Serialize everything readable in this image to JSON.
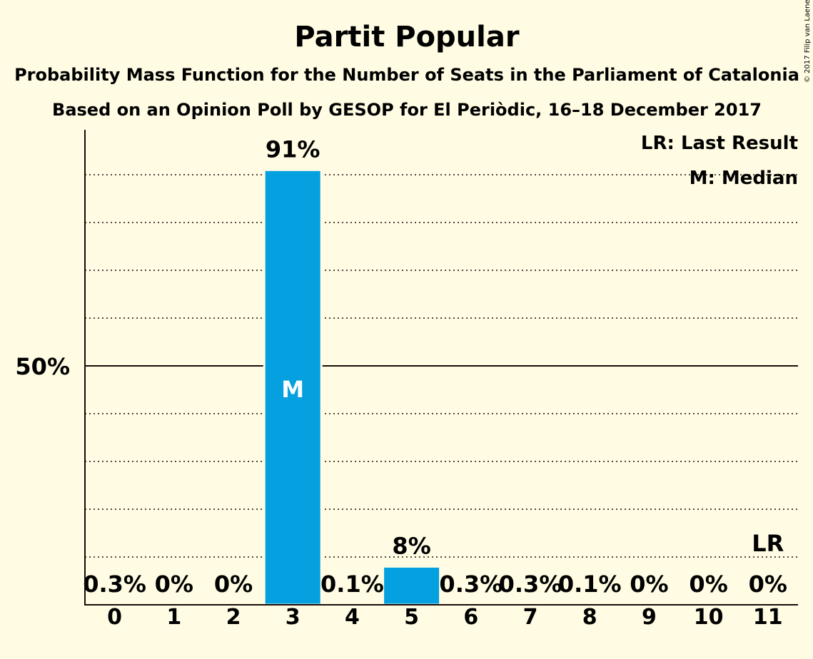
{
  "chart_data": {
    "type": "bar",
    "title": "Partit Popular",
    "subtitle_lines": [
      "Probability Mass Function for the Number of Seats in the Parliament of Catalonia",
      "Based on an Opinion Poll by GESOP for El Periòdic, 16–18 December 2017"
    ],
    "copyright": "© 2017 Filip van Laenen",
    "categories": [
      "0",
      "1",
      "2",
      "3",
      "4",
      "5",
      "6",
      "7",
      "8",
      "9",
      "10",
      "11"
    ],
    "values": [
      0.3,
      0,
      0,
      91,
      0.1,
      8,
      0.3,
      0.3,
      0.1,
      0,
      0,
      0
    ],
    "value_labels": [
      "0.3%",
      "0%",
      "0%",
      "91%",
      "0.1%",
      "8%",
      "0.3%",
      "0.3%",
      "0.1%",
      "0%",
      "0%",
      "0%"
    ],
    "ylim": [
      0,
      100
    ],
    "yticks": [
      {
        "value": 50,
        "label": "50%"
      }
    ],
    "grid": true,
    "bar_color": "#04A0DF",
    "median": {
      "category": "3",
      "label": "M"
    },
    "last_result": {
      "category": "11",
      "label": "LR"
    },
    "legend": [
      "LR: Last Result",
      "M: Median"
    ],
    "legend_position": "top-right"
  }
}
